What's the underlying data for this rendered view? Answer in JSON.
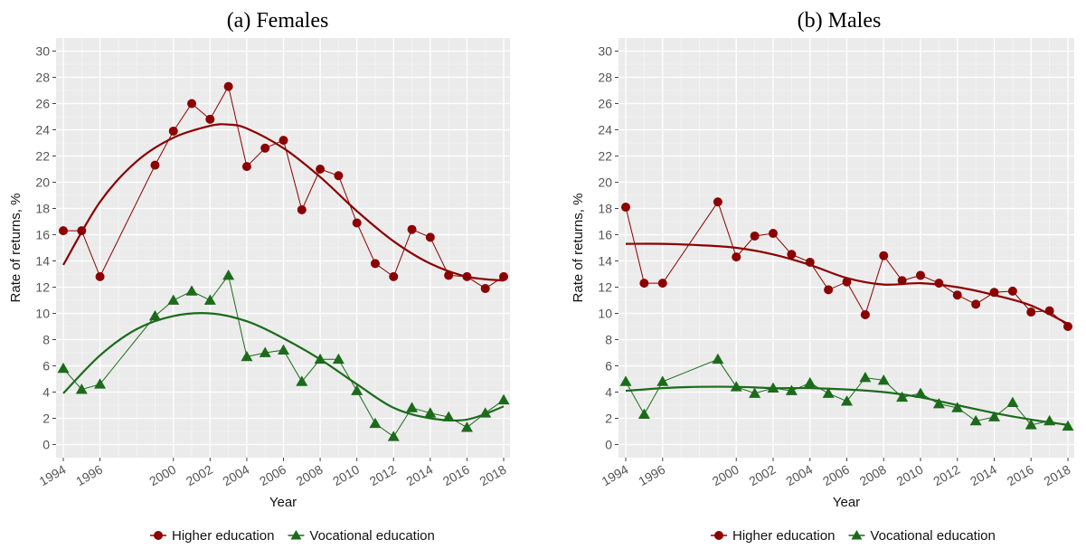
{
  "chart_data": [
    {
      "type": "line",
      "title": "(a) Females",
      "xlabel": "Year",
      "ylabel": "Rate of returns, %",
      "ylim": [
        -1,
        31
      ],
      "xlim": [
        1994,
        2018
      ],
      "yticks": [
        0,
        2,
        4,
        6,
        8,
        10,
        12,
        14,
        16,
        18,
        20,
        22,
        24,
        26,
        28,
        30
      ],
      "xticks": [
        1994,
        1996,
        2000,
        2002,
        2004,
        2006,
        2008,
        2010,
        2012,
        2014,
        2016,
        2018
      ],
      "grid": true,
      "legend": "bottom",
      "x": [
        1994,
        1995,
        1996,
        1999,
        2000,
        2001,
        2002,
        2003,
        2004,
        2005,
        2006,
        2007,
        2008,
        2009,
        2010,
        2011,
        2012,
        2013,
        2014,
        2015,
        2016,
        2017,
        2018
      ],
      "series": [
        {
          "name": "Higher education",
          "color": "#8b0000",
          "marker": "circle",
          "values": [
            16.3,
            16.3,
            12.8,
            21.3,
            23.9,
            26.0,
            24.8,
            27.3,
            21.2,
            22.6,
            23.2,
            17.9,
            21.0,
            20.5,
            16.9,
            13.8,
            12.8,
            16.4,
            15.8,
            12.9,
            12.8,
            11.9,
            12.8
          ],
          "trend": [
            [
              1994,
              13.7
            ],
            [
              1996,
              18.5
            ],
            [
              1998,
              21.6
            ],
            [
              2000,
              23.4
            ],
            [
              2002,
              24.3
            ],
            [
              2003,
              24.4
            ],
            [
              2004,
              24.1
            ],
            [
              2006,
              22.6
            ],
            [
              2008,
              20.4
            ],
            [
              2010,
              17.8
            ],
            [
              2012,
              15.5
            ],
            [
              2014,
              13.8
            ],
            [
              2016,
              12.8
            ],
            [
              2018,
              12.5
            ]
          ]
        },
        {
          "name": "Vocational education",
          "color": "#1b6b1b",
          "marker": "triangle",
          "values": [
            5.8,
            4.2,
            4.6,
            9.8,
            11.0,
            11.7,
            11.0,
            12.9,
            6.7,
            7.0,
            7.2,
            4.8,
            6.5,
            6.5,
            4.1,
            1.6,
            0.6,
            2.8,
            2.4,
            2.1,
            1.3,
            2.4,
            3.4
          ],
          "trend": [
            [
              1994,
              3.9
            ],
            [
              1996,
              6.8
            ],
            [
              1998,
              8.8
            ],
            [
              2000,
              9.8
            ],
            [
              2002,
              10.0
            ],
            [
              2004,
              9.4
            ],
            [
              2006,
              8.1
            ],
            [
              2008,
              6.5
            ],
            [
              2010,
              4.6
            ],
            [
              2012,
              2.8
            ],
            [
              2014,
              2.0
            ],
            [
              2016,
              1.9
            ],
            [
              2018,
              2.9
            ]
          ]
        }
      ]
    },
    {
      "type": "line",
      "title": "(b) Males",
      "xlabel": "Year",
      "ylabel": "Rate of returns, %",
      "ylim": [
        -1,
        31
      ],
      "xlim": [
        1994,
        2018
      ],
      "yticks": [
        0,
        2,
        4,
        6,
        8,
        10,
        12,
        14,
        16,
        18,
        20,
        22,
        24,
        26,
        28,
        30
      ],
      "xticks": [
        1994,
        1996,
        2000,
        2002,
        2004,
        2006,
        2008,
        2010,
        2012,
        2014,
        2016,
        2018
      ],
      "grid": true,
      "legend": "bottom",
      "x": [
        1994,
        1995,
        1996,
        1999,
        2000,
        2001,
        2002,
        2003,
        2004,
        2005,
        2006,
        2007,
        2008,
        2009,
        2010,
        2011,
        2012,
        2013,
        2014,
        2015,
        2016,
        2017,
        2018
      ],
      "series": [
        {
          "name": "Higher education",
          "color": "#8b0000",
          "marker": "circle",
          "values": [
            18.1,
            12.3,
            12.3,
            18.5,
            14.3,
            15.9,
            16.1,
            14.5,
            13.9,
            11.8,
            12.4,
            9.9,
            14.4,
            12.5,
            12.9,
            12.3,
            11.4,
            10.7,
            11.6,
            11.7,
            10.1,
            10.2,
            9.0
          ],
          "trend": [
            [
              1994,
              15.3
            ],
            [
              1996,
              15.3
            ],
            [
              1998,
              15.2
            ],
            [
              2000,
              15.0
            ],
            [
              2002,
              14.5
            ],
            [
              2004,
              13.7
            ],
            [
              2006,
              12.7
            ],
            [
              2008,
              12.2
            ],
            [
              2010,
              12.3
            ],
            [
              2012,
              12.0
            ],
            [
              2014,
              11.4
            ],
            [
              2016,
              10.6
            ],
            [
              2018,
              9.2
            ]
          ]
        },
        {
          "name": "Vocational education",
          "color": "#1b6b1b",
          "marker": "triangle",
          "values": [
            4.8,
            2.3,
            4.8,
            6.5,
            4.4,
            3.9,
            4.3,
            4.1,
            4.7,
            3.9,
            3.3,
            5.1,
            4.9,
            3.6,
            3.9,
            3.1,
            2.8,
            1.8,
            2.1,
            3.2,
            1.5,
            1.8,
            1.4
          ],
          "trend": [
            [
              1994,
              4.1
            ],
            [
              1996,
              4.3
            ],
            [
              1998,
              4.4
            ],
            [
              2000,
              4.4
            ],
            [
              2002,
              4.3
            ],
            [
              2004,
              4.3
            ],
            [
              2006,
              4.2
            ],
            [
              2008,
              4.0
            ],
            [
              2010,
              3.6
            ],
            [
              2012,
              3.0
            ],
            [
              2014,
              2.4
            ],
            [
              2016,
              1.9
            ],
            [
              2018,
              1.5
            ]
          ]
        }
      ]
    }
  ]
}
